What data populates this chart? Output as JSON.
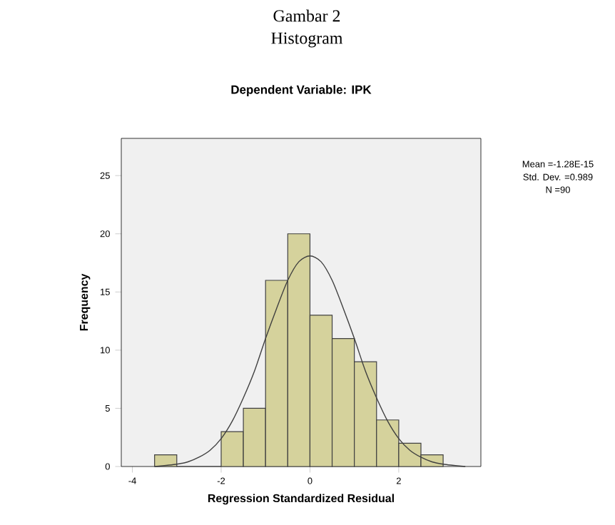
{
  "chart_data": {
    "type": "histogram",
    "title": "Dependent Variable: IPK",
    "xlabel": "Regression Standardized Residual",
    "ylabel": "Frequency",
    "bins": [
      -3.5,
      -3.0,
      -2.5,
      -2.0,
      -1.5,
      -1.0,
      -0.5,
      0.0,
      0.5,
      1.0,
      1.5,
      2.0,
      2.5,
      3.0
    ],
    "values": [
      1,
      0,
      0,
      3,
      5,
      16,
      20,
      13,
      11,
      9,
      4,
      2,
      1
    ],
    "color": "#d5d29c",
    "series": [
      {
        "type": "line",
        "color": "#404040",
        "x": [
          -3.5,
          -3.0,
          -2.75,
          -2.5,
          -2.25,
          -2.0,
          -1.75,
          -1.5,
          -1.25,
          -1.0,
          -0.75,
          -0.5,
          -0.25,
          0.0,
          0.25,
          0.5,
          0.75,
          1.0,
          1.25,
          1.5,
          1.75,
          2.0,
          2.25,
          2.5,
          2.75,
          3.0,
          3.5
        ],
        "values": [
          0,
          0.2,
          0.4,
          0.8,
          1.4,
          2.4,
          3.9,
          5.9,
          8.2,
          11.0,
          13.6,
          16.0,
          17.6,
          18.1,
          17.6,
          16.0,
          13.6,
          11.0,
          8.2,
          5.9,
          3.9,
          2.4,
          1.4,
          0.8,
          0.4,
          0.2,
          0
        ]
      }
    ],
    "xlim": [
      -4.25,
      3.85
    ],
    "ylim": [
      0,
      28.2
    ],
    "xticks": [
      -4,
      -2,
      0,
      2
    ],
    "yticks": [
      0,
      5,
      10,
      15,
      20,
      25
    ],
    "grid": false,
    "marker": "none",
    "annotations": [
      "Gambar 2",
      "Histogram",
      "Mean =-1.28E-15",
      "Std. Dev. =0.989",
      "N =90"
    ]
  }
}
